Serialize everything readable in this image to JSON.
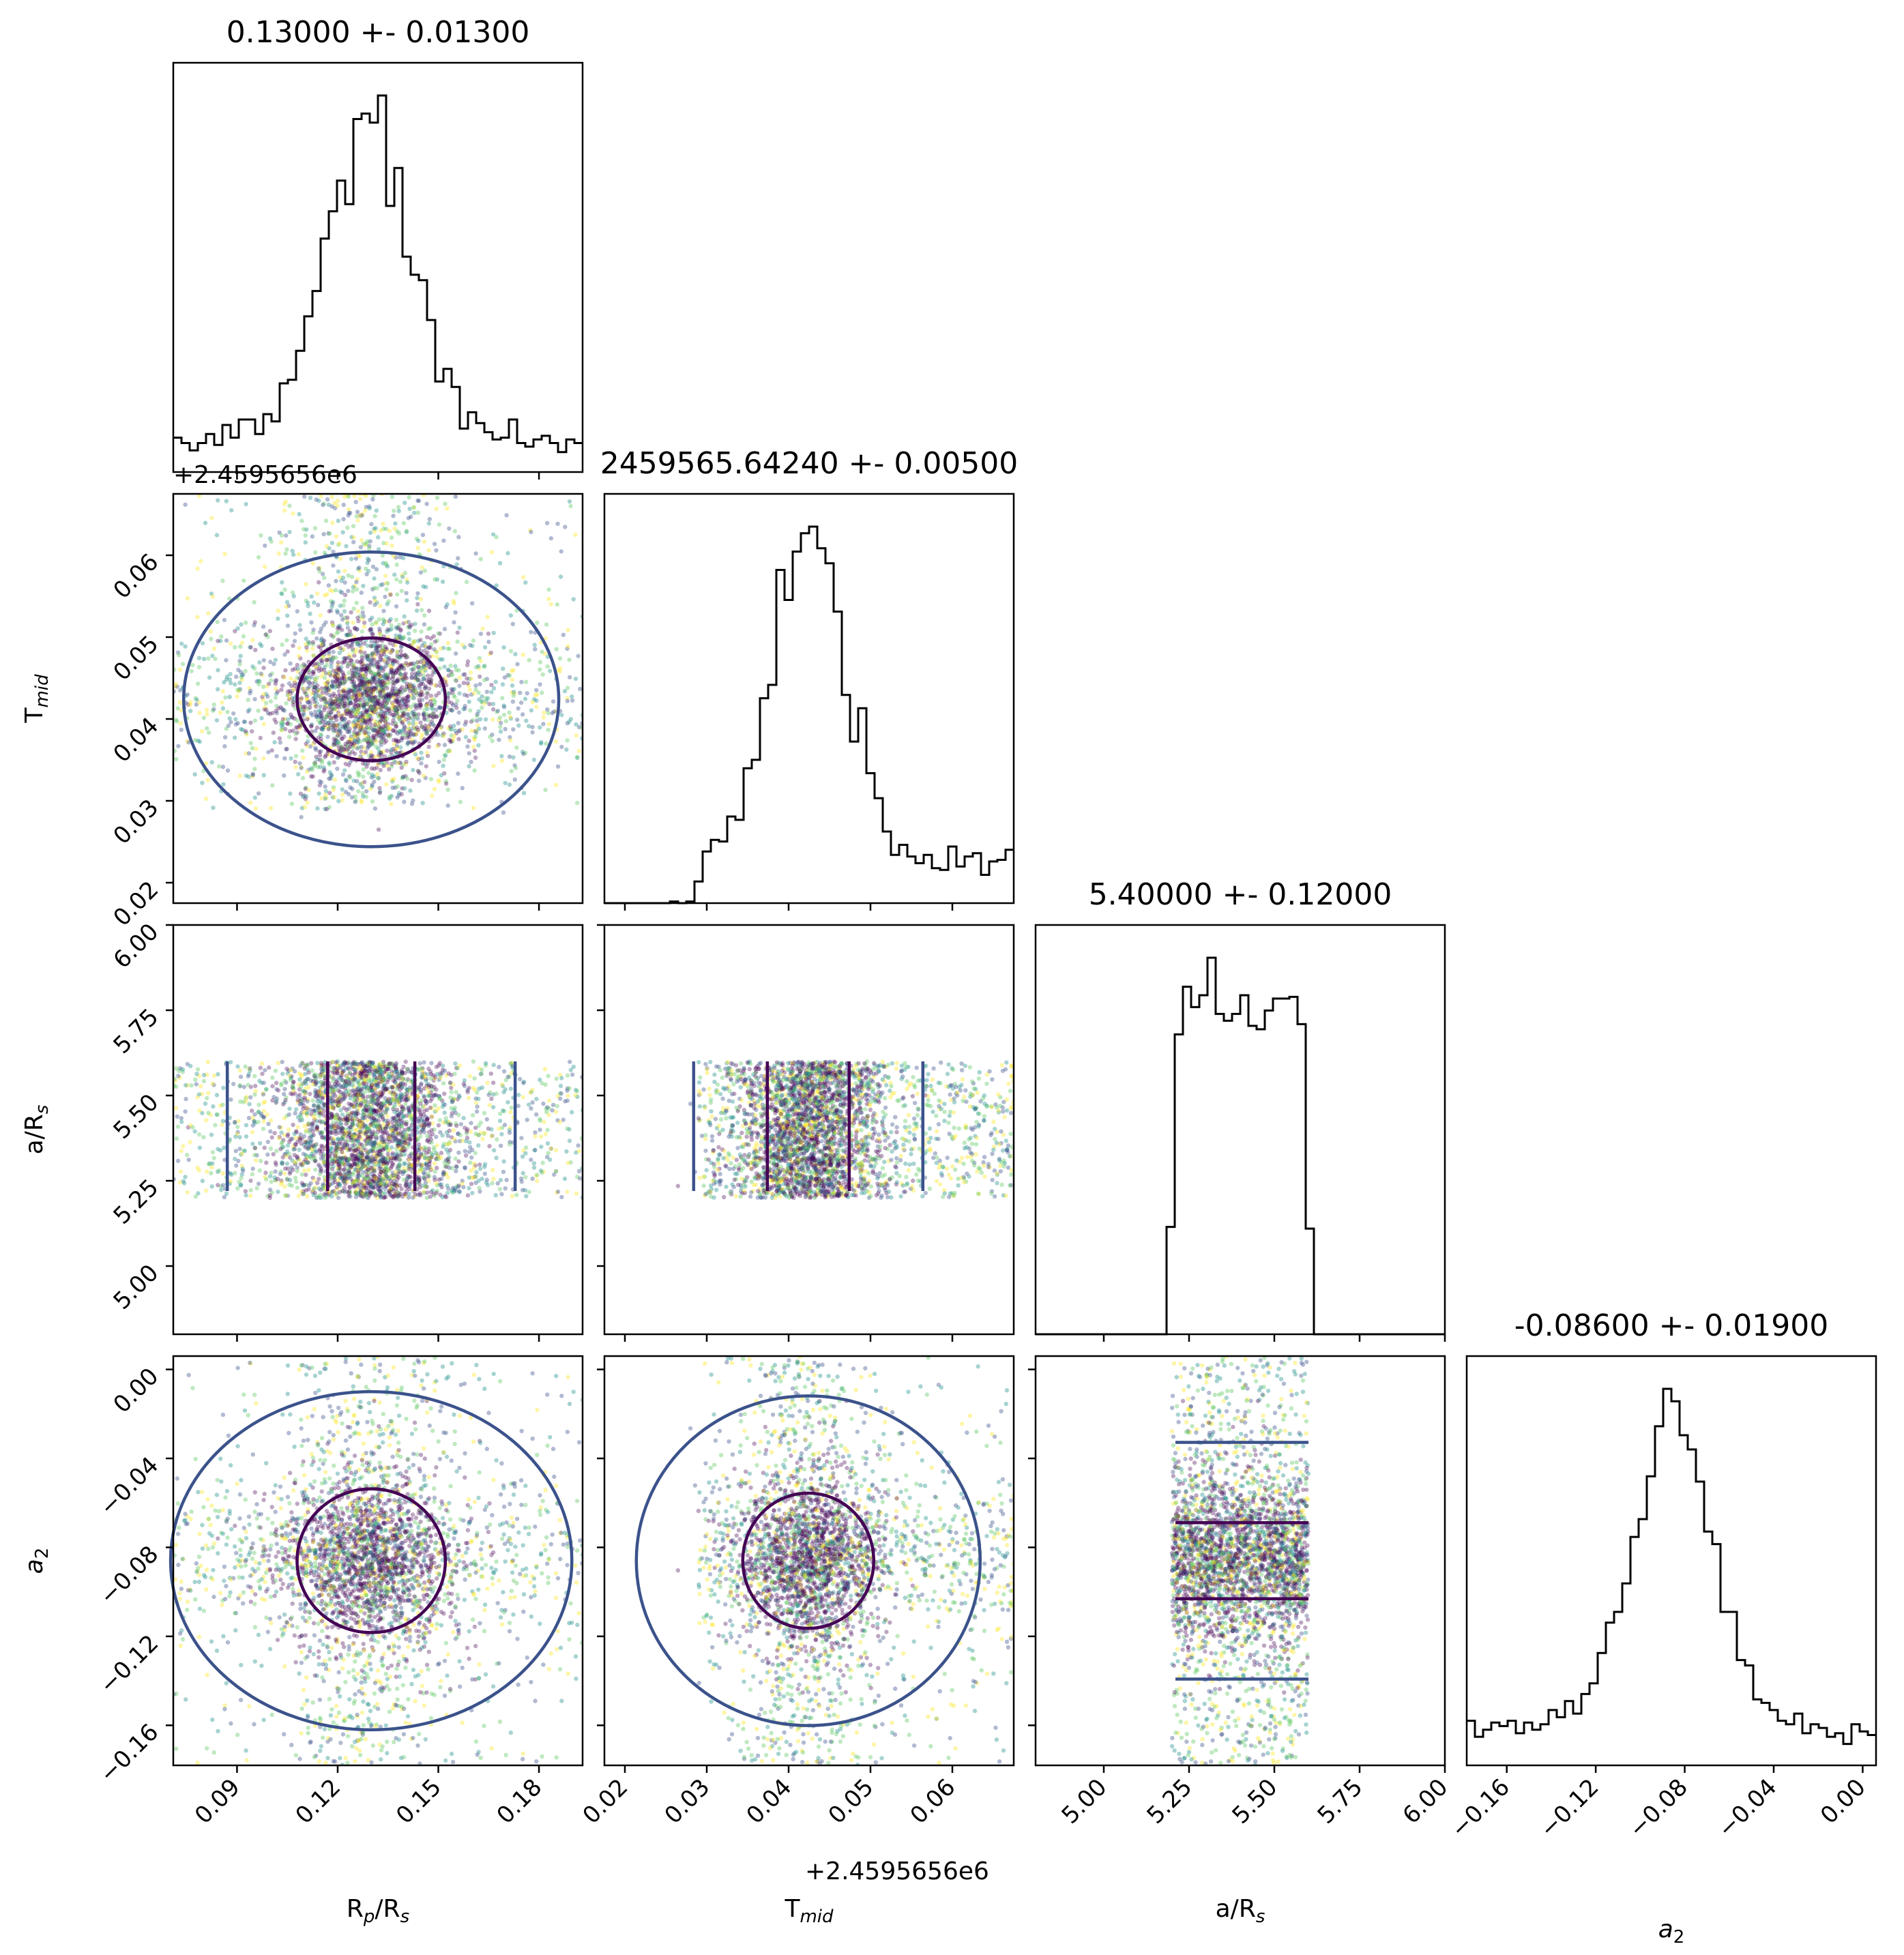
{
  "chart_data": {
    "type": "scatter",
    "subtype": "corner",
    "colormap": [
      "#440154",
      "#3b528b",
      "#21918c",
      "#5ec962",
      "#fde725"
    ],
    "contour_colors": [
      "#440154",
      "#3b528b"
    ],
    "histogram_color": "#000000",
    "parameters": [
      {
        "key": "rp",
        "label_base": "R",
        "label_sub": "p",
        "label_tail": "/R",
        "label_sub2": "s",
        "title": "0.13000 +- 0.01300",
        "mean": 0.13,
        "sigma": 0.013,
        "range": [
          0.071,
          0.193
        ],
        "ticks": [
          "0.09",
          "0.12",
          "0.15",
          "0.18"
        ],
        "tick_values": [
          0.09,
          0.12,
          0.15,
          0.18
        ]
      },
      {
        "key": "tmid",
        "label_base": "T",
        "label_sub": "mid",
        "title": "2459565.64240 +- 0.00500",
        "mean": 0.0424,
        "sigma": 0.005,
        "offset_label": "+2.4595656e6",
        "range": [
          0.0175,
          0.0675
        ],
        "ticks": [
          "0.02",
          "0.03",
          "0.04",
          "0.05",
          "0.06"
        ],
        "tick_values": [
          0.02,
          0.03,
          0.04,
          0.05,
          0.06
        ]
      },
      {
        "key": "ars",
        "label_base": "a/R",
        "label_sub": "s",
        "title": "5.40000 +- 0.12000",
        "mean": 5.4,
        "sigma": 0.12,
        "uniform_range": [
          5.2,
          5.6
        ],
        "range": [
          4.8,
          6.0
        ],
        "ticks": [
          "5.00",
          "5.25",
          "5.50",
          "5.75",
          "6.00"
        ],
        "tick_values": [
          5.0,
          5.25,
          5.5,
          5.75,
          6.0
        ]
      },
      {
        "key": "a2",
        "label_base": "a",
        "label_sub": "2",
        "italic": true,
        "title": "-0.08600 +- 0.01900",
        "mean": -0.086,
        "sigma": 0.019,
        "range": [
          -0.178,
          0.006
        ],
        "ticks": [
          "0.00",
          "−0.04",
          "−0.08",
          "−0.12",
          "−0.16"
        ],
        "tick_values": [
          0.0,
          -0.04,
          -0.08,
          -0.12,
          -0.16
        ]
      }
    ],
    "rp_offset_label": "+2.4595656e6"
  }
}
